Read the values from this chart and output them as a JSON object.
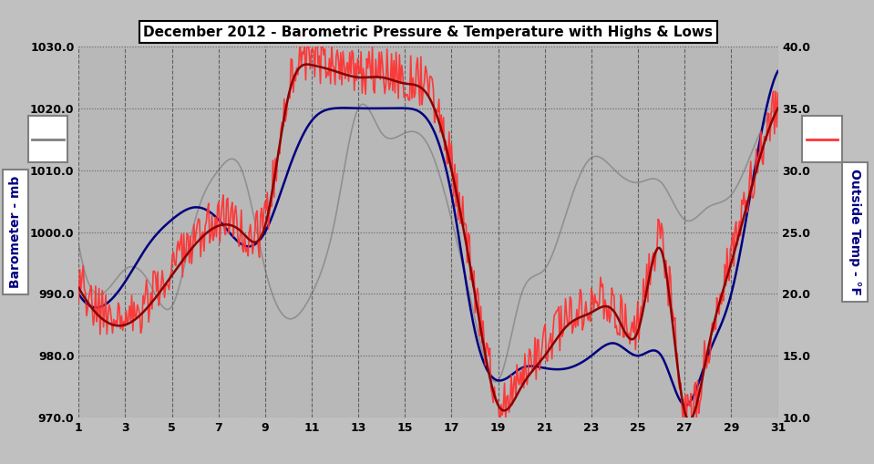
{
  "title": "December 2012 - Barometric Pressure & Temperature with Highs & Lows",
  "ylabel_left": "Barometer - mb",
  "ylabel_right": "Outside Temp - °F",
  "bg_color": "#c0c0c0",
  "plot_bg_color": "#b8b8b8",
  "ylim_left": [
    970.0,
    1030.0
  ],
  "ylim_right": [
    10.0,
    40.0
  ],
  "yticks_left": [
    970.0,
    980.0,
    990.0,
    1000.0,
    1010.0,
    1020.0,
    1030.0
  ],
  "yticks_right": [
    10.0,
    15.0,
    20.0,
    25.0,
    30.0,
    35.0,
    40.0
  ],
  "xticks": [
    1,
    3,
    5,
    7,
    9,
    11,
    13,
    15,
    17,
    19,
    21,
    23,
    25,
    27,
    29,
    31
  ],
  "xlim": [
    1,
    31
  ],
  "baro_color": "#8b0000",
  "baro_hi_color": "#ff3333",
  "temp_color": "#000080",
  "temp_gray_color": "#909090",
  "grid_color": "#606060",
  "title_fontsize": 11,
  "axis_fontsize": 9
}
